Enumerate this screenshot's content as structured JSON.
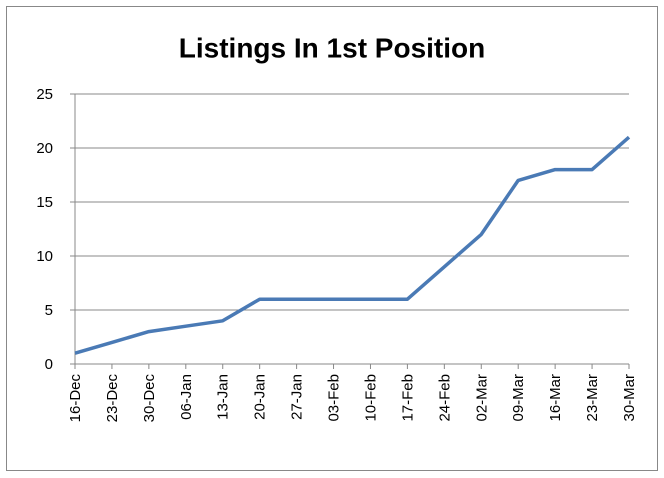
{
  "chart_data": {
    "type": "line",
    "title": "Listings In 1st Position",
    "categories": [
      "16-Dec",
      "23-Dec",
      "30-Dec",
      "06-Jan",
      "13-Jan",
      "20-Jan",
      "27-Jan",
      "03-Feb",
      "10-Feb",
      "17-Feb",
      "24-Feb",
      "02-Mar",
      "09-Mar",
      "16-Mar",
      "23-Mar",
      "30-Mar"
    ],
    "series": [
      {
        "name": "Listings",
        "color": "#4a7ab5",
        "values": [
          1,
          2,
          3,
          3.5,
          4,
          6,
          6,
          6,
          6,
          6,
          9,
          12,
          17,
          18,
          18,
          21
        ]
      }
    ],
    "ylim": [
      0,
      25
    ],
    "yticks": [
      0,
      5,
      10,
      15,
      20,
      25
    ],
    "grid": true
  }
}
